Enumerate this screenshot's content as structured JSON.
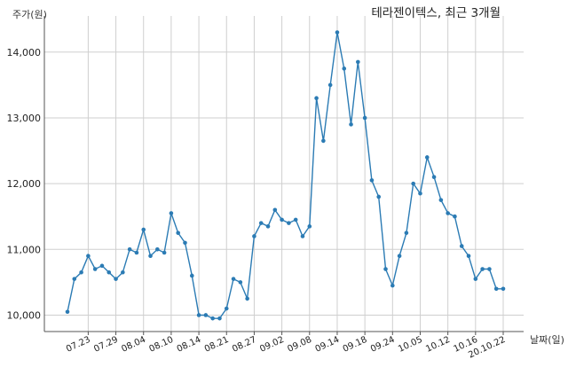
{
  "chart_data": {
    "type": "line",
    "title": "테라젠이텍스, 최근 3개월",
    "ylabel": "주가(원)",
    "xlabel": "날짜(일)",
    "ylim": [
      9750,
      14550
    ],
    "yticks": [
      10000,
      11000,
      12000,
      13000,
      14000
    ],
    "ytick_labels": [
      "10,000",
      "11,000",
      "12,000",
      "13,000",
      "14,000"
    ],
    "grid": true,
    "line_color": "#2b7bb4",
    "x": [
      "07.20",
      "07.21",
      "07.22",
      "07.23",
      "07.24",
      "07.27",
      "07.28",
      "07.29",
      "07.30",
      "07.31",
      "08.03",
      "08.04",
      "08.05",
      "08.06",
      "08.07",
      "08.10",
      "08.11",
      "08.12",
      "08.13",
      "08.14",
      "08.18",
      "08.19",
      "08.20",
      "08.21",
      "08.24",
      "08.25",
      "08.26",
      "08.27",
      "08.28",
      "08.31",
      "09.01",
      "09.02",
      "09.03",
      "09.04",
      "09.07",
      "09.08",
      "09.09",
      "09.10",
      "09.11",
      "09.14",
      "09.15",
      "09.16",
      "09.17",
      "09.18",
      "09.21",
      "09.22",
      "09.23",
      "09.24",
      "09.25",
      "09.28",
      "09.29",
      "10.05",
      "10.06",
      "10.07",
      "10.08",
      "10.12",
      "10.13",
      "10.14",
      "10.15",
      "10.16",
      "10.19",
      "10.20",
      "10.21",
      "10.22"
    ],
    "values": [
      10050,
      10550,
      10650,
      10900,
      10700,
      10750,
      10650,
      10550,
      10650,
      11000,
      10950,
      11300,
      10900,
      11000,
      10950,
      11550,
      11250,
      11100,
      10600,
      10000,
      10000,
      9950,
      9950,
      10100,
      10550,
      10500,
      10250,
      11200,
      11400,
      11350,
      11600,
      11450,
      11400,
      11450,
      11200,
      11350,
      13300,
      12650,
      13500,
      14300,
      13750,
      12900,
      13850,
      13000,
      12050,
      11800,
      10700,
      10450,
      10900,
      11250,
      12000,
      11850,
      12400,
      12100,
      11750,
      11550,
      11500,
      11050,
      10900,
      10550,
      10700,
      10700,
      10400,
      10400
    ],
    "tick_labels": [
      "07.23",
      "07.29",
      "08.04",
      "08.10",
      "08.14",
      "08.21",
      "08.27",
      "09.02",
      "09.08",
      "09.14",
      "09.18",
      "09.24",
      "10.05",
      "10.12",
      "10.16",
      "20.10.22"
    ],
    "tick_indices": [
      3,
      7,
      11,
      15,
      19,
      23,
      27,
      31,
      35,
      39,
      43,
      47,
      51,
      55,
      59,
      63
    ]
  }
}
